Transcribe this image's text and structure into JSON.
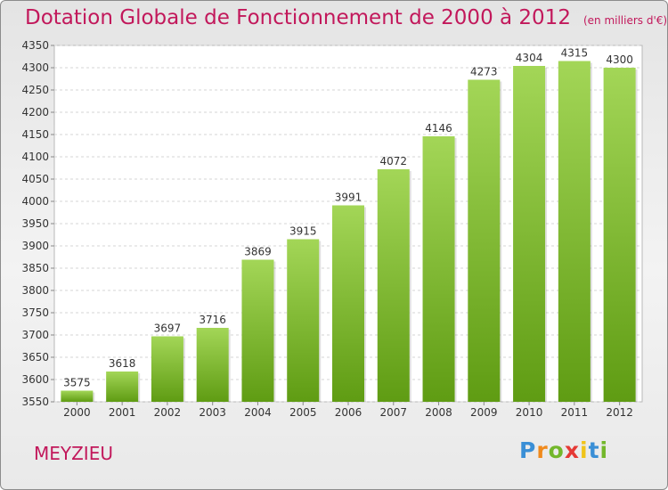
{
  "title": "Dotation Globale de Fonctionnement de 2000 à 2012",
  "subtitle": "(en milliers d'€)",
  "location": "MEYZIEU",
  "logo": {
    "text": "Proxiti",
    "letters": [
      "P",
      "r",
      "o",
      "x",
      "i",
      "t",
      "i"
    ]
  },
  "colors": {
    "bar_top": "#a3d657",
    "bar_bottom": "#5f9c13",
    "title": "#c2185b",
    "label": "#333333"
  },
  "chart_data": {
    "type": "bar",
    "title": "Dotation Globale de Fonctionnement de 2000 à 2012",
    "subtitle": "(en milliers d'€)",
    "xlabel": "",
    "ylabel": "",
    "categories": [
      "2000",
      "2001",
      "2002",
      "2003",
      "2004",
      "2005",
      "2006",
      "2007",
      "2008",
      "2009",
      "2010",
      "2011",
      "2012"
    ],
    "values": [
      3575,
      3618,
      3697,
      3716,
      3869,
      3915,
      3991,
      4072,
      4146,
      4273,
      4304,
      4315,
      4300
    ],
    "ylim": [
      3550,
      4350
    ],
    "yticks": [
      3550,
      3600,
      3650,
      3700,
      3750,
      3800,
      3850,
      3900,
      3950,
      4000,
      4050,
      4100,
      4150,
      4200,
      4250,
      4300,
      4350
    ],
    "grid": true,
    "legend": "none"
  }
}
